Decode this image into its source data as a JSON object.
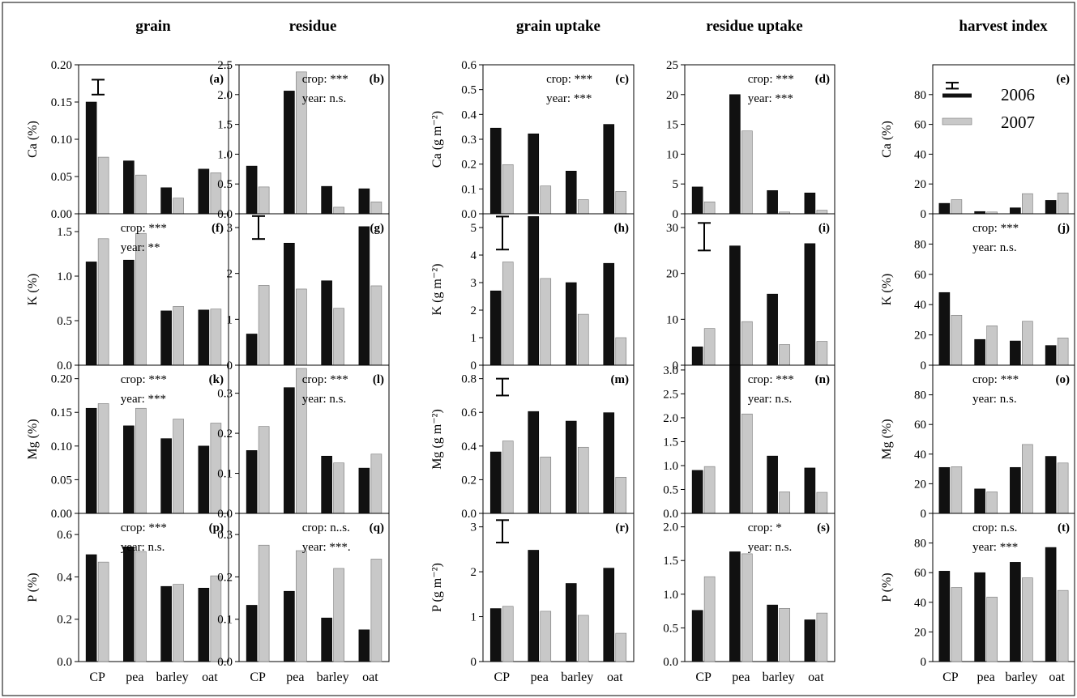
{
  "categories": [
    "CP",
    "pea",
    "barley",
    "oat"
  ],
  "columns": [
    "grain",
    "residue",
    "grain uptake",
    "residue uptake",
    "harvest index"
  ],
  "legend": {
    "items": [
      "2006",
      "2007"
    ]
  },
  "colors": {
    "y2006": "#111111",
    "y2007": "#c8c8c8"
  },
  "chart_data": [
    {
      "type": "bar",
      "panel": "(a)",
      "column": "grain",
      "ylabel": "Ca (%)",
      "ylim": [
        0,
        0.2
      ],
      "ticks": [
        "0.00",
        "0.05",
        "0.10",
        "0.15",
        "0.20"
      ],
      "categories": [
        "CP",
        "pea",
        "barley",
        "oat"
      ],
      "series": [
        {
          "name": "2006",
          "values": [
            0.15,
            0.071,
            0.035,
            0.06
          ]
        },
        {
          "name": "2007",
          "values": [
            0.076,
            0.052,
            0.021,
            0.055
          ]
        }
      ],
      "annotations": [],
      "errorbar": {
        "lo": 0.16,
        "hi": 0.18
      }
    },
    {
      "type": "bar",
      "panel": "(b)",
      "column": "residue",
      "ylabel": "",
      "ylim": [
        0,
        2.5
      ],
      "ticks": [
        "0.0",
        "0.5",
        "1.0",
        "1.5",
        "2.0",
        "2.5"
      ],
      "categories": [
        "CP",
        "pea",
        "barley",
        "oat"
      ],
      "series": [
        {
          "name": "2006",
          "values": [
            0.8,
            2.06,
            0.46,
            0.42
          ]
        },
        {
          "name": "2007",
          "values": [
            0.45,
            2.38,
            0.11,
            0.2
          ]
        }
      ],
      "annotations": [
        "crop: ***",
        "year: n.s."
      ]
    },
    {
      "type": "bar",
      "panel": "(c)",
      "column": "grain uptake",
      "ylabel": "Ca (g m⁻²)",
      "ylim": [
        0,
        0.6
      ],
      "ticks": [
        "0.0",
        "0.1",
        "0.2",
        "0.3",
        "0.4",
        "0.5",
        "0.6"
      ],
      "categories": [
        "CP",
        "pea",
        "barley",
        "oat"
      ],
      "series": [
        {
          "name": "2006",
          "values": [
            0.345,
            0.322,
            0.172,
            0.36
          ]
        },
        {
          "name": "2007",
          "values": [
            0.198,
            0.112,
            0.057,
            0.09
          ]
        }
      ],
      "annotations": [
        "crop: ***",
        "year: ***"
      ]
    },
    {
      "type": "bar",
      "panel": "(d)",
      "column": "residue uptake",
      "ylabel": "",
      "ylim": [
        0,
        25
      ],
      "ticks": [
        "0",
        "5",
        "10",
        "15",
        "20",
        "25"
      ],
      "categories": [
        "CP",
        "pea",
        "barley",
        "oat"
      ],
      "series": [
        {
          "name": "2006",
          "values": [
            4.5,
            20.0,
            3.9,
            3.5
          ]
        },
        {
          "name": "2007",
          "values": [
            2.0,
            13.9,
            0.3,
            0.6
          ]
        }
      ],
      "annotations": [
        "crop: ***",
        "year: ***"
      ]
    },
    {
      "type": "bar",
      "panel": "(e)",
      "column": "harvest index",
      "ylabel": "Ca (%)",
      "ylim": [
        0,
        100
      ],
      "ticks": [
        "0",
        "20",
        "40",
        "60",
        "80"
      ],
      "categories": [
        "CP",
        "pea",
        "barley",
        "oat"
      ],
      "series": [
        {
          "name": "2006",
          "values": [
            7,
            1.5,
            4,
            9
          ]
        },
        {
          "name": "2007",
          "values": [
            9.5,
            1.2,
            13.5,
            14
          ]
        }
      ],
      "annotations": [],
      "errorbar": {
        "lo": 84,
        "hi": 88
      }
    },
    {
      "type": "bar",
      "panel": "(f)",
      "column": "grain",
      "ylabel": "K (%)",
      "ylim": [
        0,
        1.7
      ],
      "ticks": [
        "0.0",
        "0.5",
        "1.0",
        "1.5"
      ],
      "categories": [
        "CP",
        "pea",
        "barley",
        "oat"
      ],
      "series": [
        {
          "name": "2006",
          "values": [
            1.16,
            1.18,
            0.61,
            0.62
          ]
        },
        {
          "name": "2007",
          "values": [
            1.42,
            1.48,
            0.66,
            0.63
          ]
        }
      ],
      "annotations": [
        "crop: ***",
        "year: **"
      ]
    },
    {
      "type": "bar",
      "panel": "(g)",
      "column": "residue",
      "ylabel": "",
      "ylim": [
        0,
        3.3
      ],
      "ticks": [
        "0",
        "1",
        "2",
        "3"
      ],
      "categories": [
        "CP",
        "pea",
        "barley",
        "oat"
      ],
      "series": [
        {
          "name": "2006",
          "values": [
            0.68,
            2.66,
            1.84,
            3.02
          ]
        },
        {
          "name": "2007",
          "values": [
            1.74,
            1.66,
            1.24,
            1.73
          ]
        }
      ],
      "annotations": [],
      "errorbar": {
        "lo": 2.75,
        "hi": 3.25
      }
    },
    {
      "type": "bar",
      "panel": "(h)",
      "column": "grain uptake",
      "ylabel": "K (g m⁻²)",
      "ylim": [
        0,
        5.5
      ],
      "ticks": [
        "0",
        "1",
        "2",
        "3",
        "4",
        "5"
      ],
      "categories": [
        "CP",
        "pea",
        "barley",
        "oat"
      ],
      "series": [
        {
          "name": "2006",
          "values": [
            2.7,
            5.4,
            3.0,
            3.7
          ]
        },
        {
          "name": "2007",
          "values": [
            3.75,
            3.15,
            1.85,
            1.0
          ]
        }
      ],
      "annotations": [],
      "errorbar": {
        "lo": 4.2,
        "hi": 5.4
      }
    },
    {
      "type": "bar",
      "panel": "(i)",
      "column": "residue uptake",
      "ylabel": "",
      "ylim": [
        0,
        33
      ],
      "ticks": [
        "0",
        "10",
        "20",
        "30"
      ],
      "categories": [
        "CP",
        "pea",
        "barley",
        "oat"
      ],
      "series": [
        {
          "name": "2006",
          "values": [
            4,
            26,
            15.5,
            26.5
          ]
        },
        {
          "name": "2007",
          "values": [
            8,
            9.5,
            4.5,
            5.2
          ]
        }
      ],
      "annotations": [],
      "errorbar": {
        "lo": 25,
        "hi": 31
      }
    },
    {
      "type": "bar",
      "panel": "(j)",
      "column": "harvest index",
      "ylabel": "K (%)",
      "ylim": [
        0,
        100
      ],
      "ticks": [
        "0",
        "20",
        "40",
        "60",
        "80"
      ],
      "categories": [
        "CP",
        "pea",
        "barley",
        "oat"
      ],
      "series": [
        {
          "name": "2006",
          "values": [
            48,
            17,
            16,
            13
          ]
        },
        {
          "name": "2007",
          "values": [
            33,
            26,
            29,
            18
          ]
        }
      ],
      "annotations": [
        "crop: ***",
        "year: n.s."
      ]
    },
    {
      "type": "bar",
      "panel": "(k)",
      "column": "grain",
      "ylabel": "Mg (%)",
      "ylim": [
        0,
        0.22
      ],
      "ticks": [
        "0.00",
        "0.05",
        "0.10",
        "0.15",
        "0.20"
      ],
      "categories": [
        "CP",
        "pea",
        "barley",
        "oat"
      ],
      "series": [
        {
          "name": "2006",
          "values": [
            0.156,
            0.13,
            0.111,
            0.1
          ]
        },
        {
          "name": "2007",
          "values": [
            0.163,
            0.156,
            0.14,
            0.134
          ]
        }
      ],
      "annotations": [
        "crop: ***",
        "year: ***"
      ]
    },
    {
      "type": "bar",
      "panel": "(l)",
      "column": "residue",
      "ylabel": "",
      "ylim": [
        0,
        0.37
      ],
      "ticks": [
        "0.0",
        "0.1",
        "0.2",
        "0.3"
      ],
      "categories": [
        "CP",
        "pea",
        "barley",
        "oat"
      ],
      "series": [
        {
          "name": "2006",
          "values": [
            0.157,
            0.314,
            0.143,
            0.113
          ]
        },
        {
          "name": "2007",
          "values": [
            0.217,
            0.362,
            0.126,
            0.148
          ]
        }
      ],
      "annotations": [
        "crop: ***",
        "year: n.s."
      ]
    },
    {
      "type": "bar",
      "panel": "(m)",
      "column": "grain uptake",
      "ylabel": "Mg (g m⁻²)",
      "ylim": [
        0,
        0.88
      ],
      "ticks": [
        "0.0",
        "0.2",
        "0.4",
        "0.6",
        "0.8"
      ],
      "categories": [
        "CP",
        "pea",
        "barley",
        "oat"
      ],
      "series": [
        {
          "name": "2006",
          "values": [
            0.365,
            0.605,
            0.548,
            0.598
          ]
        },
        {
          "name": "2007",
          "values": [
            0.43,
            0.335,
            0.393,
            0.215
          ]
        }
      ],
      "annotations": [],
      "errorbar": {
        "lo": 0.7,
        "hi": 0.8
      }
    },
    {
      "type": "bar",
      "panel": "(n)",
      "column": "residue uptake",
      "ylabel": "",
      "ylim": [
        0,
        3.1
      ],
      "ticks": [
        "0.0",
        "0.5",
        "1.0",
        "1.5",
        "2.0",
        "2.5",
        "3.0"
      ],
      "categories": [
        "CP",
        "pea",
        "barley",
        "oat"
      ],
      "series": [
        {
          "name": "2006",
          "values": [
            0.9,
            3.1,
            1.2,
            0.95
          ]
        },
        {
          "name": "2007",
          "values": [
            0.98,
            2.08,
            0.45,
            0.44
          ]
        }
      ],
      "annotations": [
        "crop: ***",
        "year: n.s."
      ]
    },
    {
      "type": "bar",
      "panel": "(o)",
      "column": "harvest index",
      "ylabel": "Mg (%)",
      "ylim": [
        0,
        100
      ],
      "ticks": [
        "0",
        "20",
        "40",
        "60",
        "80"
      ],
      "categories": [
        "CP",
        "pea",
        "barley",
        "oat"
      ],
      "series": [
        {
          "name": "2006",
          "values": [
            31,
            16.5,
            31,
            38.5
          ]
        },
        {
          "name": "2007",
          "values": [
            31.5,
            14.5,
            46.5,
            34
          ]
        }
      ],
      "annotations": [
        "crop: ***",
        "year: n.s."
      ]
    },
    {
      "type": "bar",
      "panel": "(p)",
      "column": "grain",
      "ylabel": "P (%)",
      "ylim": [
        0,
        0.7
      ],
      "ticks": [
        "0.0",
        "0.2",
        "0.4",
        "0.6"
      ],
      "categories": [
        "CP",
        "pea",
        "barley",
        "oat"
      ],
      "series": [
        {
          "name": "2006",
          "values": [
            0.505,
            0.542,
            0.355,
            0.347
          ]
        },
        {
          "name": "2007",
          "values": [
            0.47,
            0.52,
            0.365,
            0.405
          ]
        }
      ],
      "annotations": [
        "crop: ***",
        "year: n.s."
      ]
    },
    {
      "type": "bar",
      "panel": "(q)",
      "column": "residue",
      "ylabel": "",
      "ylim": [
        0,
        0.35
      ],
      "ticks": [
        "0.0",
        "0.1",
        "0.2",
        "0.3"
      ],
      "categories": [
        "CP",
        "pea",
        "barley",
        "oat"
      ],
      "series": [
        {
          "name": "2006",
          "values": [
            0.133,
            0.166,
            0.103,
            0.075
          ]
        },
        {
          "name": "2007",
          "values": [
            0.275,
            0.262,
            0.22,
            0.242
          ]
        }
      ],
      "annotations": [
        "crop: n..s.",
        "year: ***."
      ]
    },
    {
      "type": "bar",
      "panel": "(r)",
      "column": "grain uptake",
      "ylabel": "P (g m⁻²)",
      "ylim": [
        0,
        3.3
      ],
      "ticks": [
        "0",
        "1",
        "2",
        "3"
      ],
      "categories": [
        "CP",
        "pea",
        "barley",
        "oat"
      ],
      "series": [
        {
          "name": "2006",
          "values": [
            1.18,
            2.48,
            1.74,
            2.08
          ]
        },
        {
          "name": "2007",
          "values": [
            1.23,
            1.12,
            1.03,
            0.63
          ]
        }
      ],
      "annotations": [],
      "errorbar": {
        "lo": 2.65,
        "hi": 3.15
      }
    },
    {
      "type": "bar",
      "panel": "(s)",
      "column": "residue uptake",
      "ylabel": "",
      "ylim": [
        0,
        2.2
      ],
      "ticks": [
        "0.0",
        "0.5",
        "1.0",
        "1.5",
        "2.0"
      ],
      "categories": [
        "CP",
        "pea",
        "barley",
        "oat"
      ],
      "series": [
        {
          "name": "2006",
          "values": [
            0.76,
            1.63,
            0.84,
            0.62
          ]
        },
        {
          "name": "2007",
          "values": [
            1.26,
            1.6,
            0.79,
            0.72
          ]
        }
      ],
      "annotations": [
        "crop: *",
        "year: n.s."
      ]
    },
    {
      "type": "bar",
      "panel": "(t)",
      "column": "harvest index",
      "ylabel": "P (%)",
      "ylim": [
        0,
        100
      ],
      "ticks": [
        "0",
        "20",
        "40",
        "60",
        "80"
      ],
      "categories": [
        "CP",
        "pea",
        "barley",
        "oat"
      ],
      "series": [
        {
          "name": "2006",
          "values": [
            61,
            60,
            67,
            77
          ]
        },
        {
          "name": "2007",
          "values": [
            50,
            43.5,
            56.5,
            48
          ]
        }
      ],
      "annotations": [
        "crop: n.s.",
        "year: ***"
      ]
    }
  ]
}
